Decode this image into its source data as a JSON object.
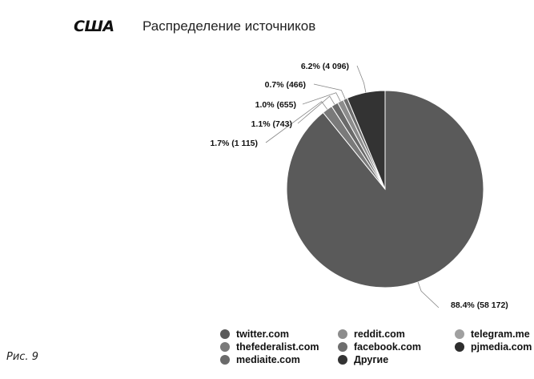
{
  "header": {
    "country": "США",
    "title": "Распределение источников"
  },
  "caption": "Рис. 9",
  "chart_data": {
    "type": "pie",
    "title": "Распределение источников",
    "slices": [
      {
        "label": "twitter.com",
        "value": 58172,
        "percent": 88.4,
        "data_label": "88.4% (58 172)",
        "color": "#5a5a5a"
      },
      {
        "label": "thefederalist.com",
        "value": 1115,
        "percent": 1.7,
        "data_label": "1.7% (1 115)",
        "color": "#7a7a7a"
      },
      {
        "label": "mediaite.com",
        "value": 743,
        "percent": 1.1,
        "data_label": "1.1% (743)",
        "color": "#6a6a6a"
      },
      {
        "label": "reddit.com",
        "value": 655,
        "percent": 1.0,
        "data_label": "1.0% (655)",
        "color": "#8c8c8c"
      },
      {
        "label": "facebook.com",
        "value": 466,
        "percent": 0.7,
        "data_label": "0.7% (466)",
        "color": "#6e6e6e"
      },
      {
        "label": "telegram.me",
        "value": 0,
        "percent": 0,
        "data_label": "",
        "color": "#a0a0a0"
      },
      {
        "label": "pjmedia.com",
        "value": 0,
        "percent": 0,
        "data_label": "",
        "color": "#2e2e2e"
      },
      {
        "label": "Другие",
        "value": 4096,
        "percent": 6.2,
        "data_label": "6.2% (4 096)",
        "color": "#333333"
      }
    ],
    "legend": {
      "placement": "bottom",
      "items": [
        {
          "label": "twitter.com",
          "color": "#5a5a5a"
        },
        {
          "label": "reddit.com",
          "color": "#8c8c8c"
        },
        {
          "label": "telegram.me",
          "color": "#a0a0a0"
        },
        {
          "label": "thefederalist.com",
          "color": "#7a7a7a"
        },
        {
          "label": "facebook.com",
          "color": "#6e6e6e"
        },
        {
          "label": "pjmedia.com",
          "color": "#2e2e2e"
        },
        {
          "label": "mediaite.com",
          "color": "#6a6a6a"
        },
        {
          "label": "Другие",
          "color": "#333333"
        }
      ]
    }
  }
}
